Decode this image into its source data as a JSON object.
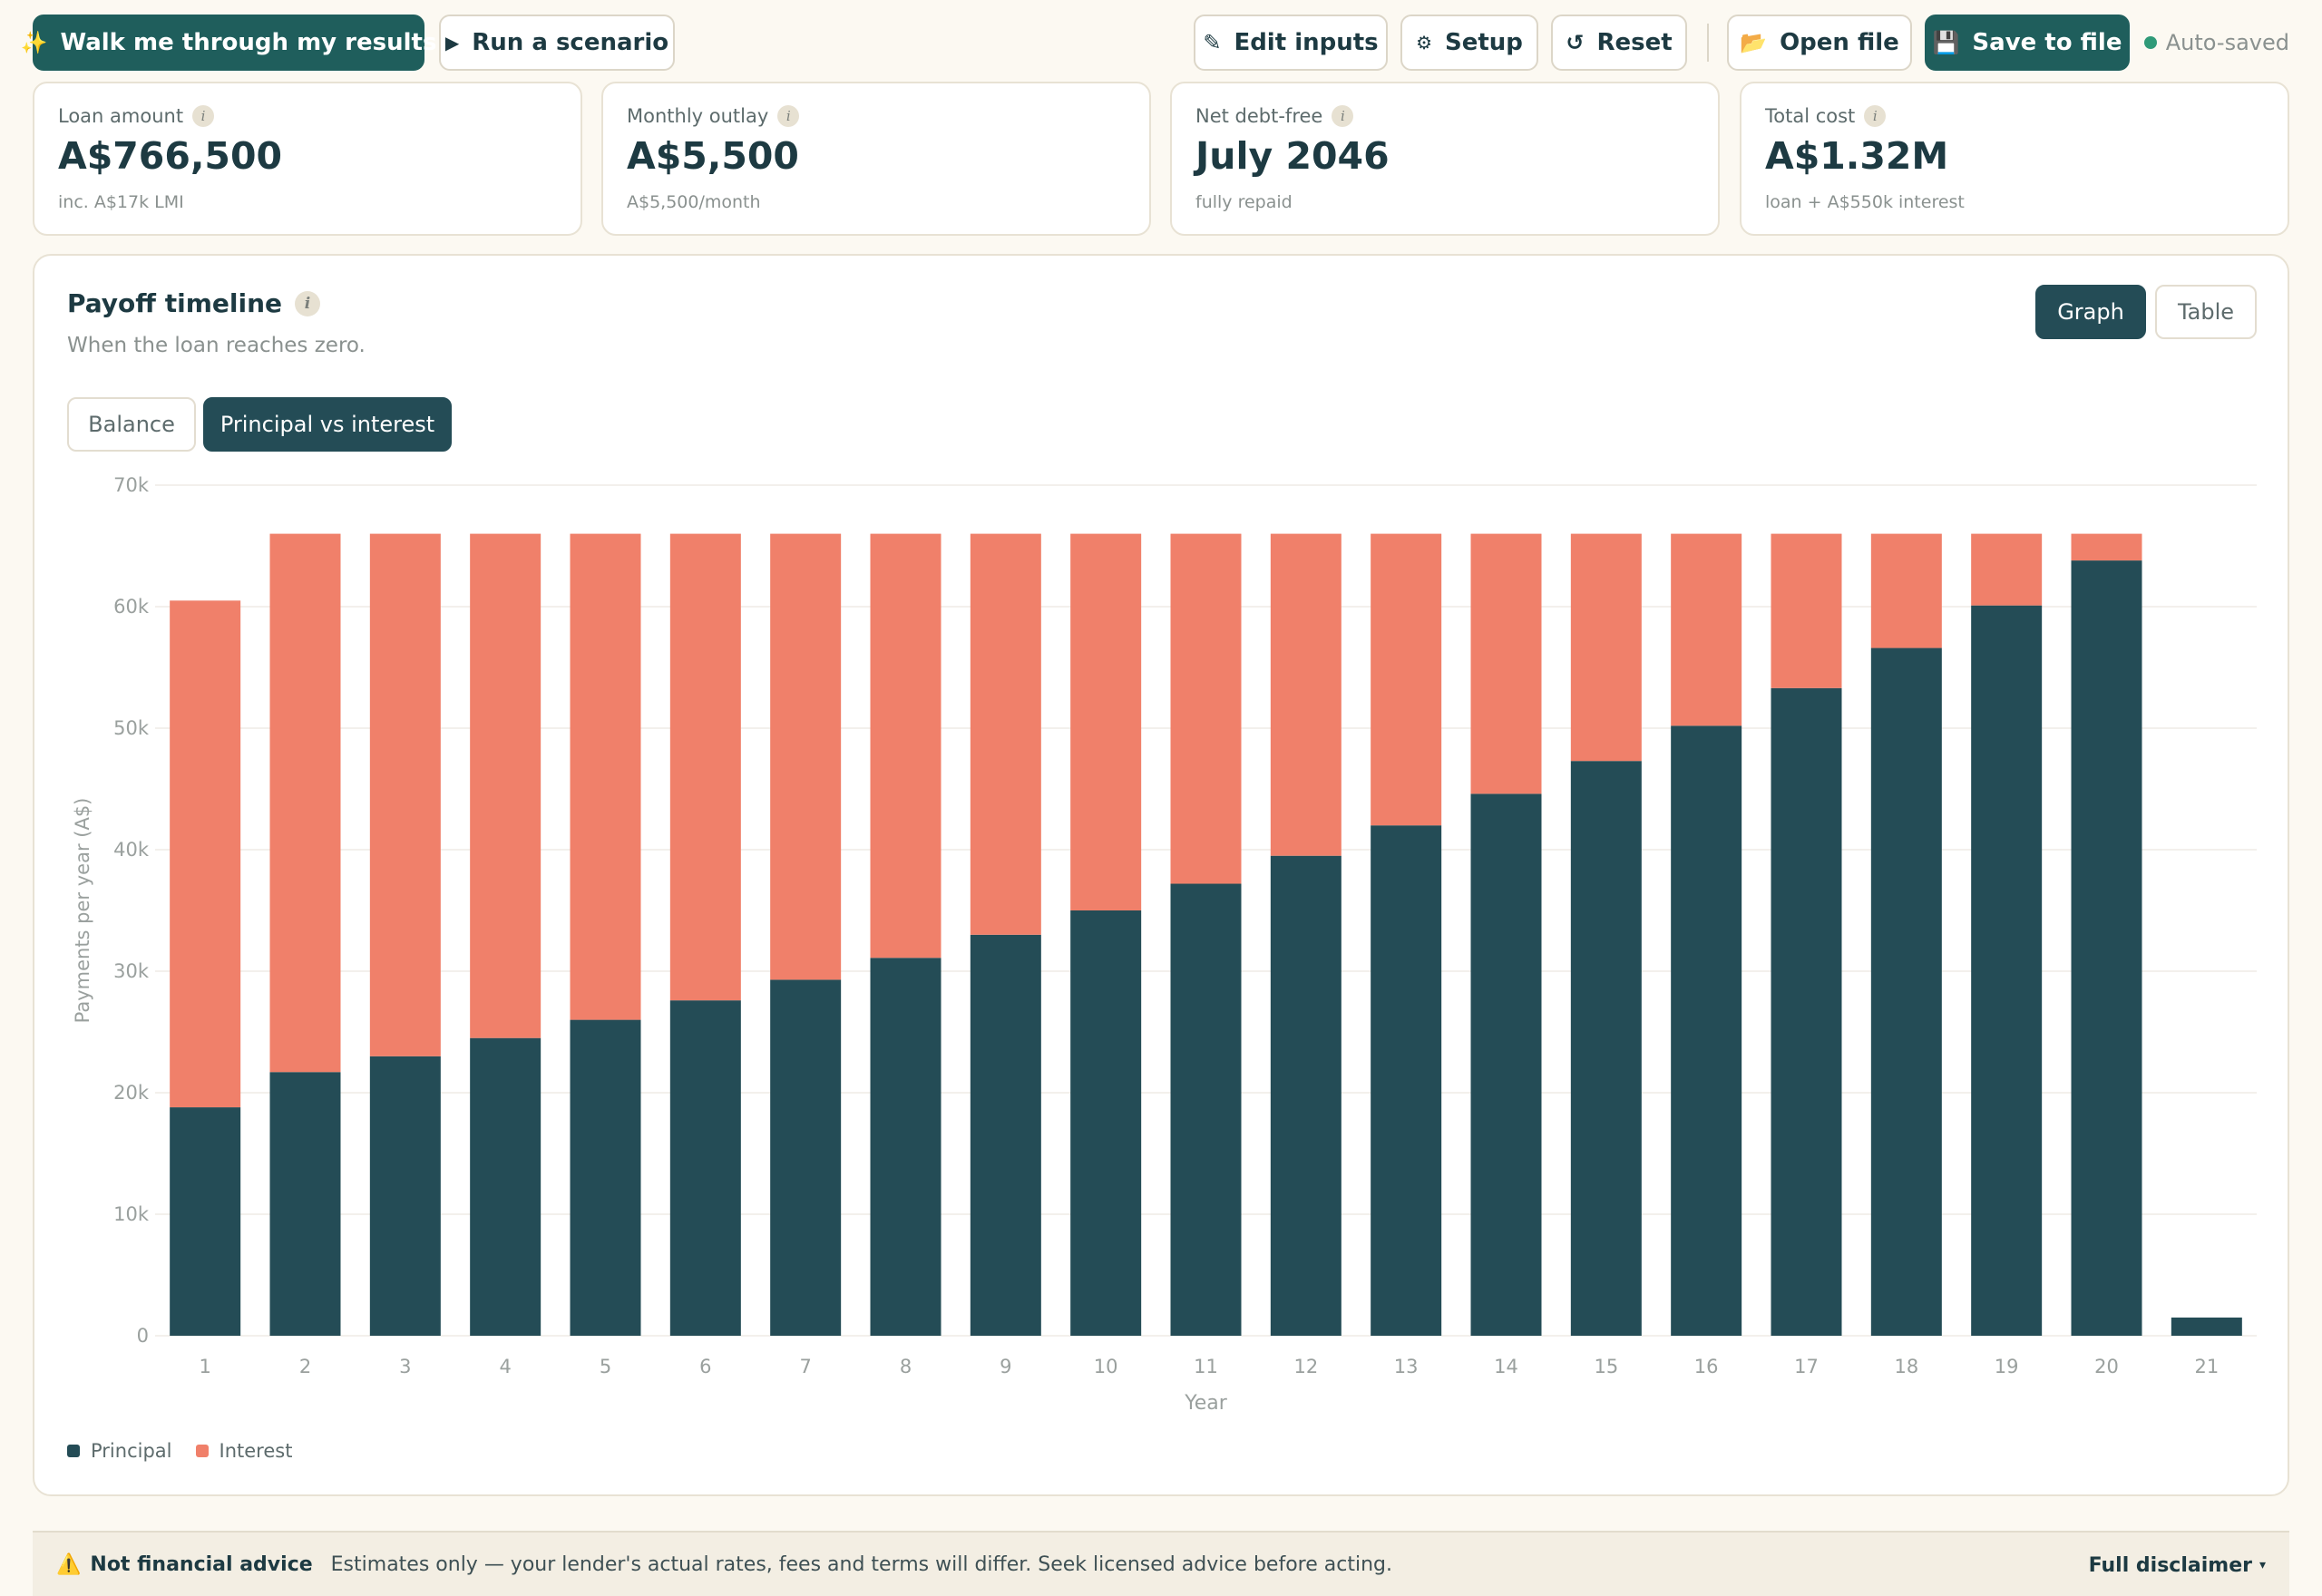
{
  "toolbar": {
    "walkthrough": {
      "label": "Walk me through my results",
      "icon": "sparkles-icon",
      "glyph": "✨"
    },
    "scenario": {
      "label": "Run a scenario",
      "icon": "play-icon",
      "glyph": "▶"
    },
    "edit_inputs": {
      "label": "Edit inputs",
      "icon": "pencil-icon",
      "glyph": "✎"
    },
    "setup": {
      "label": "Setup",
      "icon": "gear-icon",
      "glyph": "⚙"
    },
    "reset": {
      "label": "Reset",
      "icon": "reset-icon",
      "glyph": "↺"
    },
    "open_file": {
      "label": "Open file",
      "icon": "folder-icon",
      "glyph": "📂"
    },
    "save_file": {
      "label": "Save to file",
      "icon": "floppy-disk-icon",
      "glyph": "💾"
    },
    "status": "Auto-saved"
  },
  "stats": [
    {
      "label": "Loan amount",
      "value": "A$766,500",
      "sub": "inc. A$17k LMI"
    },
    {
      "label": "Monthly outlay",
      "value": "A$5,500",
      "sub": "A$5,500/month"
    },
    {
      "label": "Net debt-free",
      "value": "July 2046",
      "sub": "fully repaid"
    },
    {
      "label": "Total cost",
      "value": "A$1.32M",
      "sub": "loan + A$550k interest"
    }
  ],
  "info_glyph": "i",
  "panel": {
    "title": "Payoff timeline",
    "subtitle": "When the loan reaches zero.",
    "view_toggle": {
      "graph": "Graph",
      "table": "Table",
      "active": "graph"
    },
    "chart_toggle": {
      "balance": "Balance",
      "principal_interest": "Principal vs interest",
      "active": "principal_interest"
    }
  },
  "colors": {
    "principal": "#244c56",
    "interest": "#f0806a",
    "accent": "#1f5e5c",
    "autosave_dot": "#2f9a78"
  },
  "chart_data": {
    "type": "bar",
    "stacked": true,
    "categories": [
      "1",
      "2",
      "3",
      "4",
      "5",
      "6",
      "7",
      "8",
      "9",
      "10",
      "11",
      "12",
      "13",
      "14",
      "15",
      "16",
      "17",
      "18",
      "19",
      "20",
      "21"
    ],
    "series": [
      {
        "name": "Principal",
        "values": [
          18800,
          21700,
          23000,
          24500,
          26000,
          27600,
          29300,
          31100,
          33000,
          35000,
          37200,
          39500,
          42000,
          44600,
          47300,
          50200,
          53300,
          56600,
          60100,
          63800,
          1500
        ]
      },
      {
        "name": "Interest",
        "values": [
          41700,
          44300,
          43000,
          41500,
          40000,
          38400,
          36700,
          34900,
          33000,
          31000,
          28800,
          26500,
          24000,
          21400,
          18700,
          15800,
          12700,
          9400,
          5900,
          2200,
          0
        ]
      }
    ],
    "xlabel": "Year",
    "ylabel": "Payments per year (A$)",
    "ylim": [
      0,
      70000
    ],
    "yticks": [
      0,
      10000,
      20000,
      30000,
      40000,
      50000,
      60000,
      70000
    ],
    "ytick_labels": [
      "0",
      "10k",
      "20k",
      "30k",
      "40k",
      "50k",
      "60k",
      "70k"
    ],
    "grid": true,
    "legend": "bottom-left"
  },
  "footer": {
    "icon": "warning-icon",
    "glyph": "⚠️",
    "title": "Not financial advice",
    "text": "Estimates only — your lender's actual rates, fees and terms will differ. Seek licensed advice before acting.",
    "link": "Full disclaimer",
    "caret": "▾"
  }
}
